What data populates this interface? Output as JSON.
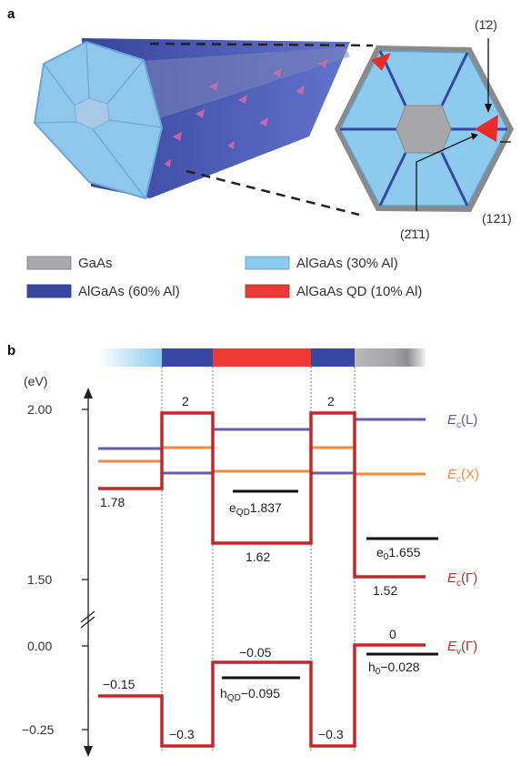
{
  "panel_a": {
    "label": "a",
    "facets": {
      "top": "(1̄2)",
      "left": "(2̄1̄1)",
      "right": "(121)"
    },
    "legend": [
      {
        "label": "GaAs",
        "color": "#a9a9ab"
      },
      {
        "label": "AlGaAs (30% Al)",
        "color": "#8ccbee"
      },
      {
        "label": "AlGaAs (60% Al)",
        "color": "#3847a2"
      },
      {
        "label": "AlGaAs QD (10% Al)",
        "color": "#e93a34"
      }
    ]
  },
  "panel_b": {
    "label": "b",
    "unit": "(eV)",
    "ticks": [
      "2.00",
      "1.50",
      "0.00",
      "−0.25"
    ],
    "values": {
      "ec_outer": "1.78",
      "ec_barrier_left": "2",
      "ec_barrier_right": "2",
      "ec_qd": "1.62",
      "ec_core": "1.52",
      "e_qd": "1.837",
      "e_qd_sub": "QD",
      "e_zero": "1.655",
      "e_zero_sub": "0",
      "ev_outer": "−0.15",
      "ev_barrier_left": "−0.3",
      "ev_barrier_right": "−0.3",
      "ev_qd": "−0.05",
      "ev_core": "0",
      "h_qd": "−0.095",
      "h_qd_sub": "QD",
      "h_zero": "−0.028",
      "h_zero_sub": "0"
    },
    "bands": [
      {
        "main": "E",
        "sub": "c",
        "paren": "(L)",
        "color": "#6a58b0"
      },
      {
        "main": "E",
        "sub": "c",
        "paren": "(X)",
        "color": "#f18a3f"
      },
      {
        "main": "E",
        "sub": "c",
        "paren": "(Γ)",
        "color": "#c0282a"
      },
      {
        "main": "E",
        "sub": "v",
        "paren": "(Γ)",
        "color": "#c0282a"
      }
    ]
  }
}
